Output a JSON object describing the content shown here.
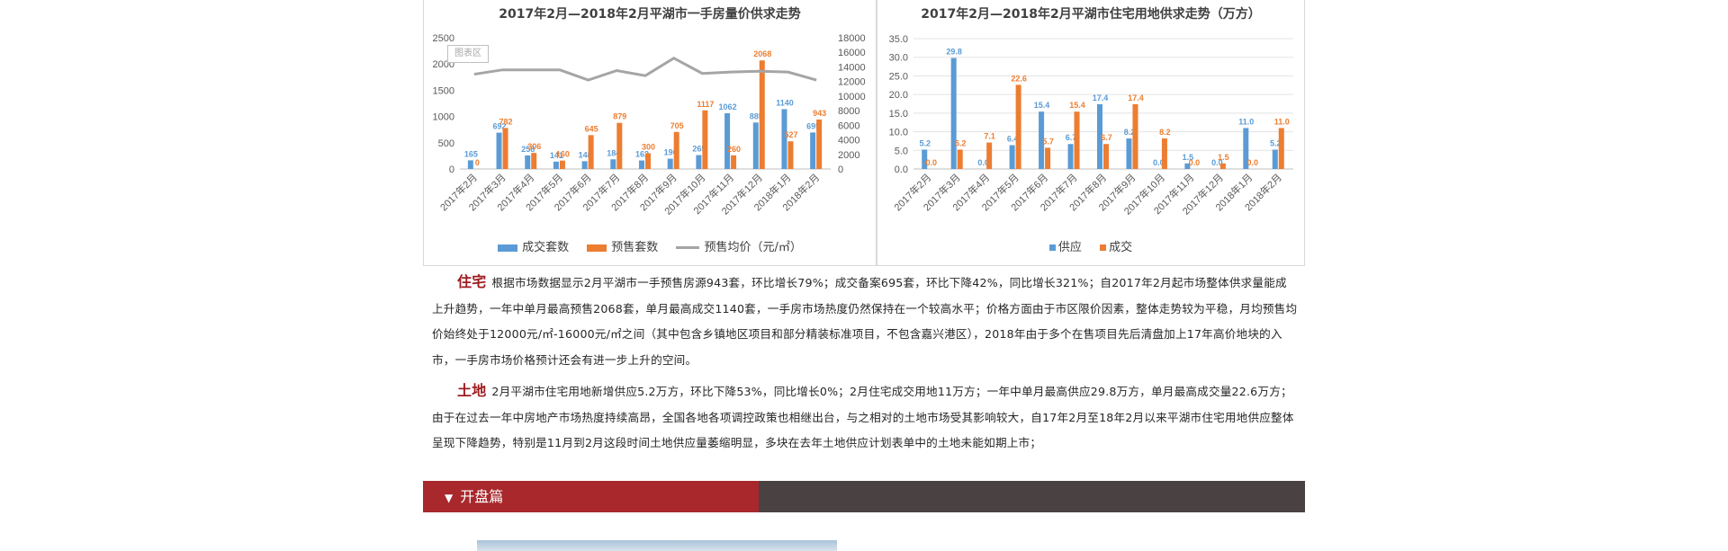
{
  "charts": [
    {
      "title": "2017年2月—2018年2月平湖市一手房量价供求走势",
      "area_tag": "图表区",
      "legend": [
        "成交套数",
        "预售套数",
        "预售均价（元/㎡）"
      ]
    },
    {
      "title": "2017年2月—2018年2月平湖市住宅用地供求走势（万方）",
      "legend": [
        "供应",
        "成交"
      ]
    }
  ],
  "chart_data": [
    {
      "type": "bar",
      "categories": [
        "2017年2月",
        "2017年3月",
        "2017年4月",
        "2017年5月",
        "2017年6月",
        "2017年7月",
        "2017年8月",
        "2017年9月",
        "2017年10月",
        "2017年11月",
        "2017年12月",
        "2018年1月",
        "2018年2月"
      ],
      "series": [
        {
          "name": "成交套数",
          "color": "#5b9bd5",
          "values": [
            165,
            692,
            258,
            141,
            148,
            184,
            162,
            196,
            265,
            1062,
            885,
            1140,
            695
          ]
        },
        {
          "name": "预售套数",
          "color": "#ed7d31",
          "values": [
            0,
            782,
            306,
            160,
            645,
            879,
            300,
            705,
            1117,
            260,
            2068,
            527,
            943
          ]
        },
        {
          "name": "预售均价（元/㎡）",
          "color": "#a5a5a5",
          "type": "line",
          "axis": "right",
          "values": [
            13000,
            13600,
            13600,
            13600,
            12200,
            13500,
            12800,
            15200,
            13100,
            13300,
            13400,
            13300,
            12200
          ]
        }
      ],
      "ylim": [
        0,
        2500
      ],
      "yticks": [
        0,
        500,
        1000,
        1500,
        2000,
        2500
      ],
      "y2lim": [
        0,
        18000
      ],
      "y2ticks": [
        0,
        2000,
        4000,
        6000,
        8000,
        10000,
        12000,
        14000,
        16000,
        18000
      ],
      "legend_position": "bottom"
    },
    {
      "type": "bar",
      "categories": [
        "2017年2月",
        "2017年3月",
        "2017年4月",
        "2017年5月",
        "2017年6月",
        "2017年7月",
        "2017年8月",
        "2017年9月",
        "2017年10月",
        "2017年11月",
        "2017年12月",
        "2018年1月",
        "2018年2月"
      ],
      "series": [
        {
          "name": "供应",
          "color": "#5b9bd5",
          "values": [
            5.2,
            29.8,
            0.0,
            6.4,
            15.4,
            6.7,
            17.4,
            8.2,
            0.0,
            1.5,
            0.0,
            11.0,
            5.2
          ]
        },
        {
          "name": "成交",
          "color": "#ed7d31",
          "values": [
            0.0,
            5.2,
            7.1,
            22.6,
            5.7,
            15.4,
            6.7,
            17.4,
            8.2,
            0.0,
            1.5,
            0.0,
            11.0
          ]
        }
      ],
      "ylim": [
        0,
        35
      ],
      "yticks": [
        "0.0",
        "5.0",
        "10.0",
        "15.0",
        "20.0",
        "25.0",
        "30.0",
        "35.0"
      ],
      "legend_position": "bottom"
    }
  ],
  "text": {
    "residential_lead": "住宅",
    "residential_body": "根据市场数据显示2月平湖市一手预售房源943套，环比增长79%；成交备案695套，环比下降42%，同比增长321%；自2017年2月起市场整体供求量能成上升趋势，一年中单月最高预售2068套，单月最高成交1140套，一手房市场热度仍然保持在一个较高水平；价格方面由于市区限价因素，整体走势较为平稳，月均预售均价始终处于12000元/㎡-16000元/㎡之间（其中包含乡镇地区项目和部分精装标准项目，不包含嘉兴港区），2018年由于多个在售项目先后清盘加上17年高价地块的入市，一手房市场价格预计还会有进一步上升的空间。",
    "land_lead": "土地",
    "land_body": "2月平湖市住宅用地新增供应5.2万方，环比下降53%，同比增长0%；2月住宅成交用地11万方；一年中单月最高供应29.8万方，单月最高成交量22.6万方；由于在过去一年中房地产市场热度持续高昂，全国各地各项调控政策也相继出台，与之相对的土地市场受其影响较大，自17年2月至18年2月以来平湖市住宅用地供应整体呈现下降趋势，特别是11月到2月这段时间土地供应量萎缩明显，多块在去年土地供应计划表单中的土地未能如期上市；"
  },
  "section": {
    "arrow": "▼",
    "label": "开盘篇"
  }
}
